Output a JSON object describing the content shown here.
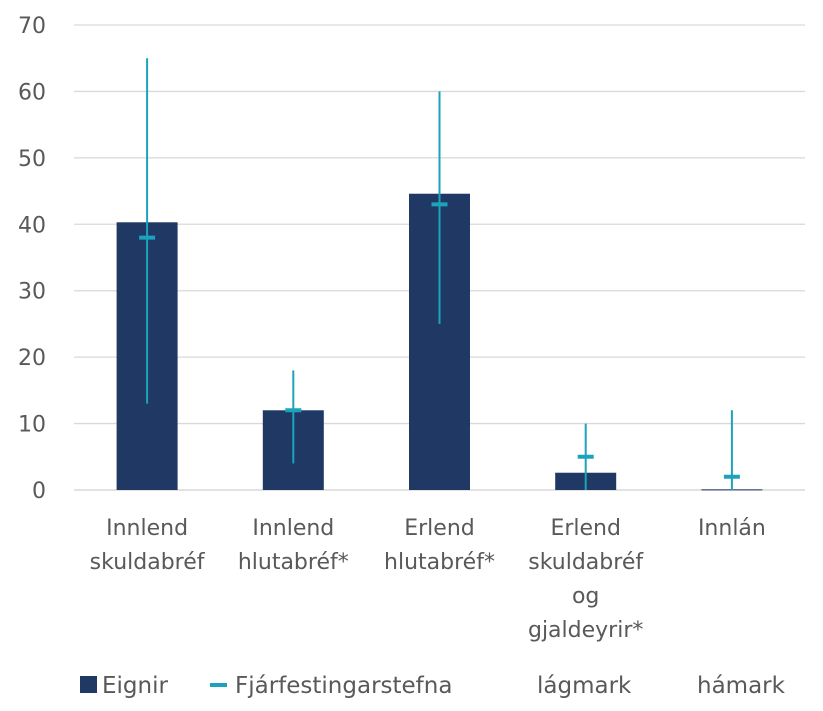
{
  "chart_data": {
    "type": "bar",
    "categories": [
      [
        "Innlend",
        "skuldabréf"
      ],
      [
        "Innlend",
        "hlutabréf*"
      ],
      [
        "Erlend",
        "hlutabréf*"
      ],
      [
        "Erlend",
        "skuldabréf",
        "og",
        "gjaldeyrir*"
      ],
      [
        "Innlán"
      ]
    ],
    "series": [
      {
        "name": "Eignir",
        "kind": "bar",
        "values": [
          40.3,
          12.0,
          44.6,
          2.6,
          0.1
        ]
      },
      {
        "name": "Fjárfestingarstefna",
        "kind": "marker",
        "values": [
          38,
          12,
          43,
          5,
          2
        ]
      },
      {
        "name": "lágmark",
        "kind": "range-low",
        "values": [
          13,
          4,
          25,
          0,
          0
        ]
      },
      {
        "name": "hámark",
        "kind": "range-high",
        "values": [
          65,
          18,
          60,
          10,
          12
        ]
      }
    ],
    "ylim": [
      0,
      70
    ],
    "yticks": [
      0,
      10,
      20,
      30,
      40,
      50,
      60,
      70
    ],
    "grid": true,
    "legend_position": "bottom",
    "colors": {
      "bar": "#1f3864",
      "line": "#1ca3bc",
      "grid": "#d9d9d9",
      "text": "#595959"
    }
  }
}
